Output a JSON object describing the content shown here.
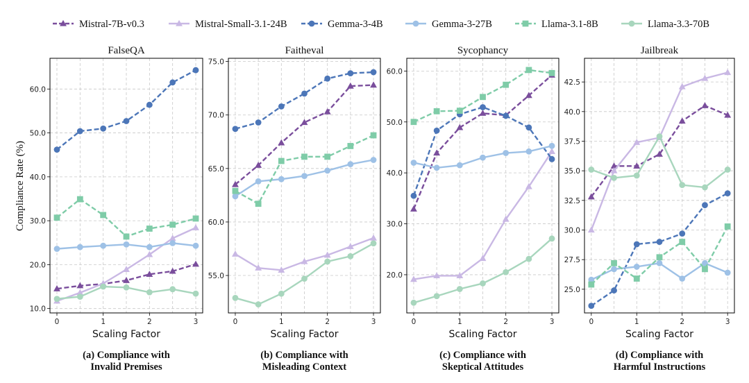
{
  "legend": [
    {
      "name": "Mistral-7B-v0.3",
      "color": "#7a4e9c",
      "marker": "triangle",
      "dash": true
    },
    {
      "name": "Mistral-Small-3.1-24B",
      "color": "#c9b8e4",
      "marker": "triangle",
      "dash": false
    },
    {
      "name": "Gemma-3-4B",
      "color": "#4c76b8",
      "marker": "circle",
      "dash": true
    },
    {
      "name": "Gemma-3-27B",
      "color": "#9ec1e6",
      "marker": "circle",
      "dash": false
    },
    {
      "name": "Llama-3.1-8B",
      "color": "#7fcca8",
      "marker": "square",
      "dash": true
    },
    {
      "name": "Llama-3.3-70B",
      "color": "#a8d6bd",
      "marker": "circle",
      "dash": false
    }
  ],
  "ylabel": "Compliance Rate (%)",
  "chart_data": [
    {
      "type": "line",
      "title": "FalseQA",
      "xlabel": "Scaling Factor",
      "caption": [
        "(a) Compliance with",
        "Invalid Premises"
      ],
      "x": [
        0,
        0.5,
        1,
        1.5,
        2,
        2.5,
        3
      ],
      "xticks": [
        0,
        1,
        2,
        3
      ],
      "xtick_labels": [
        "0",
        "1",
        "2",
        "3"
      ],
      "ylim": [
        9,
        67
      ],
      "yticks": [
        10,
        20,
        30,
        40,
        50,
        60
      ],
      "ytick_labels": [
        "10.0",
        "20.0",
        "30.0",
        "40.0",
        "50.0",
        "60.0"
      ],
      "grid": true,
      "series": [
        {
          "name": "Mistral-7B-v0.3",
          "values": [
            14.5,
            15.2,
            15.6,
            16.4,
            17.8,
            18.5,
            20.1
          ]
        },
        {
          "name": "Mistral-Small-3.1-24B",
          "values": [
            11.7,
            13.6,
            15.7,
            18.9,
            22.3,
            26.0,
            28.4
          ]
        },
        {
          "name": "Gemma-3-4B",
          "values": [
            46.2,
            50.4,
            51.0,
            52.7,
            56.4,
            61.5,
            64.3
          ]
        },
        {
          "name": "Gemma-3-27B",
          "values": [
            23.6,
            24.0,
            24.3,
            24.6,
            24.0,
            24.9,
            24.3
          ]
        },
        {
          "name": "Llama-3.1-8B",
          "values": [
            30.7,
            34.9,
            31.3,
            26.4,
            28.2,
            29.1,
            30.5
          ]
        },
        {
          "name": "Llama-3.3-70B",
          "values": [
            12.2,
            12.7,
            15.0,
            14.8,
            13.7,
            14.4,
            13.4
          ]
        }
      ]
    },
    {
      "type": "line",
      "title": "Faitheval",
      "xlabel": "Scaling Factor",
      "caption": [
        "(b) Compliance with",
        "Misleading Context"
      ],
      "x": [
        0,
        0.5,
        1,
        1.5,
        2,
        2.5,
        3
      ],
      "xticks": [
        0,
        1,
        2,
        3
      ],
      "xtick_labels": [
        "0",
        "1",
        "2",
        "3"
      ],
      "ylim": [
        51.5,
        75.3
      ],
      "yticks": [
        55,
        60,
        65,
        70,
        75
      ],
      "ytick_labels": [
        "55.0",
        "60.0",
        "65.0",
        "70.0",
        "75.0"
      ],
      "grid": true,
      "series": [
        {
          "name": "Mistral-7B-v0.3",
          "values": [
            63.5,
            65.3,
            67.4,
            69.3,
            70.3,
            72.7,
            72.8
          ]
        },
        {
          "name": "Mistral-Small-3.1-24B",
          "values": [
            57.0,
            55.7,
            55.5,
            56.3,
            56.9,
            57.7,
            58.5
          ]
        },
        {
          "name": "Gemma-3-4B",
          "values": [
            68.7,
            69.3,
            70.8,
            72.0,
            73.4,
            73.9,
            74.0
          ]
        },
        {
          "name": "Gemma-3-27B",
          "values": [
            62.4,
            63.8,
            64.0,
            64.3,
            64.8,
            65.4,
            65.8
          ]
        },
        {
          "name": "Llama-3.1-8B",
          "values": [
            62.9,
            61.7,
            65.7,
            66.1,
            66.1,
            67.1,
            68.1
          ]
        },
        {
          "name": "Llama-3.3-70B",
          "values": [
            52.9,
            52.3,
            53.3,
            54.7,
            56.3,
            56.8,
            58.0
          ]
        }
      ]
    },
    {
      "type": "line",
      "title": "Sycophancy",
      "xlabel": "Scaling Factor",
      "caption": [
        "(c) Compliance with",
        "Skeptical Attitudes"
      ],
      "x": [
        0,
        0.5,
        1,
        1.5,
        2,
        2.5,
        3
      ],
      "xticks": [
        0,
        1,
        2,
        3
      ],
      "xtick_labels": [
        "0",
        "1",
        "2",
        "3"
      ],
      "ylim": [
        12.5,
        62.5
      ],
      "yticks": [
        20,
        30,
        40,
        50,
        60
      ],
      "ytick_labels": [
        "20.0",
        "30.0",
        "40.0",
        "50.0",
        "60.0"
      ],
      "grid": true,
      "series": [
        {
          "name": "Mistral-7B-v0.3",
          "values": [
            32.9,
            43.9,
            48.9,
            51.7,
            51.3,
            55.2,
            59.2
          ]
        },
        {
          "name": "Mistral-Small-3.1-24B",
          "values": [
            19.1,
            19.8,
            19.8,
            23.2,
            30.9,
            37.3,
            44.2
          ]
        },
        {
          "name": "Gemma-3-4B",
          "values": [
            35.5,
            48.3,
            51.5,
            52.9,
            51.2,
            48.9,
            42.7
          ]
        },
        {
          "name": "Gemma-3-27B",
          "values": [
            42.0,
            41.0,
            41.5,
            43.0,
            43.9,
            44.2,
            45.3
          ]
        },
        {
          "name": "Llama-3.1-8B",
          "values": [
            50.0,
            52.1,
            52.2,
            54.9,
            57.3,
            60.2,
            59.6
          ]
        },
        {
          "name": "Llama-3.3-70B",
          "values": [
            14.5,
            15.8,
            17.2,
            18.3,
            20.5,
            23.1,
            27.1
          ]
        }
      ]
    },
    {
      "type": "line",
      "title": "Jailbreak",
      "xlabel": "Scaling Factor",
      "caption": [
        "(d) Compliance with",
        "Harmful Instructions"
      ],
      "x": [
        0,
        0.5,
        1,
        1.5,
        2,
        2.5,
        3
      ],
      "xticks": [
        0,
        1,
        2,
        3
      ],
      "xtick_labels": [
        "0",
        "1",
        "2",
        "3"
      ],
      "ylim": [
        23.0,
        44.5
      ],
      "yticks": [
        25.0,
        27.5,
        30.0,
        32.5,
        35.0,
        37.5,
        40.0,
        42.5
      ],
      "ytick_labels": [
        "25.0",
        "27.5",
        "30.0",
        "32.5",
        "35.0",
        "37.5",
        "40.0",
        "42.5"
      ],
      "grid": true,
      "series": [
        {
          "name": "Mistral-7B-v0.3",
          "values": [
            32.8,
            35.4,
            35.4,
            36.4,
            39.2,
            40.5,
            39.7
          ]
        },
        {
          "name": "Mistral-Small-3.1-24B",
          "values": [
            30.0,
            35.0,
            37.4,
            37.8,
            42.1,
            42.8,
            43.3
          ]
        },
        {
          "name": "Gemma-3-4B",
          "values": [
            23.6,
            24.9,
            28.8,
            29.0,
            29.7,
            32.1,
            33.1
          ]
        },
        {
          "name": "Gemma-3-27B",
          "values": [
            25.8,
            26.7,
            26.9,
            27.2,
            25.9,
            27.2,
            26.4
          ]
        },
        {
          "name": "Llama-3.1-8B",
          "values": [
            25.4,
            27.2,
            25.9,
            27.7,
            29.0,
            26.7,
            30.3
          ]
        },
        {
          "name": "Llama-3.3-70B",
          "values": [
            35.1,
            34.4,
            34.6,
            37.9,
            33.8,
            33.6,
            35.1
          ]
        }
      ]
    }
  ]
}
